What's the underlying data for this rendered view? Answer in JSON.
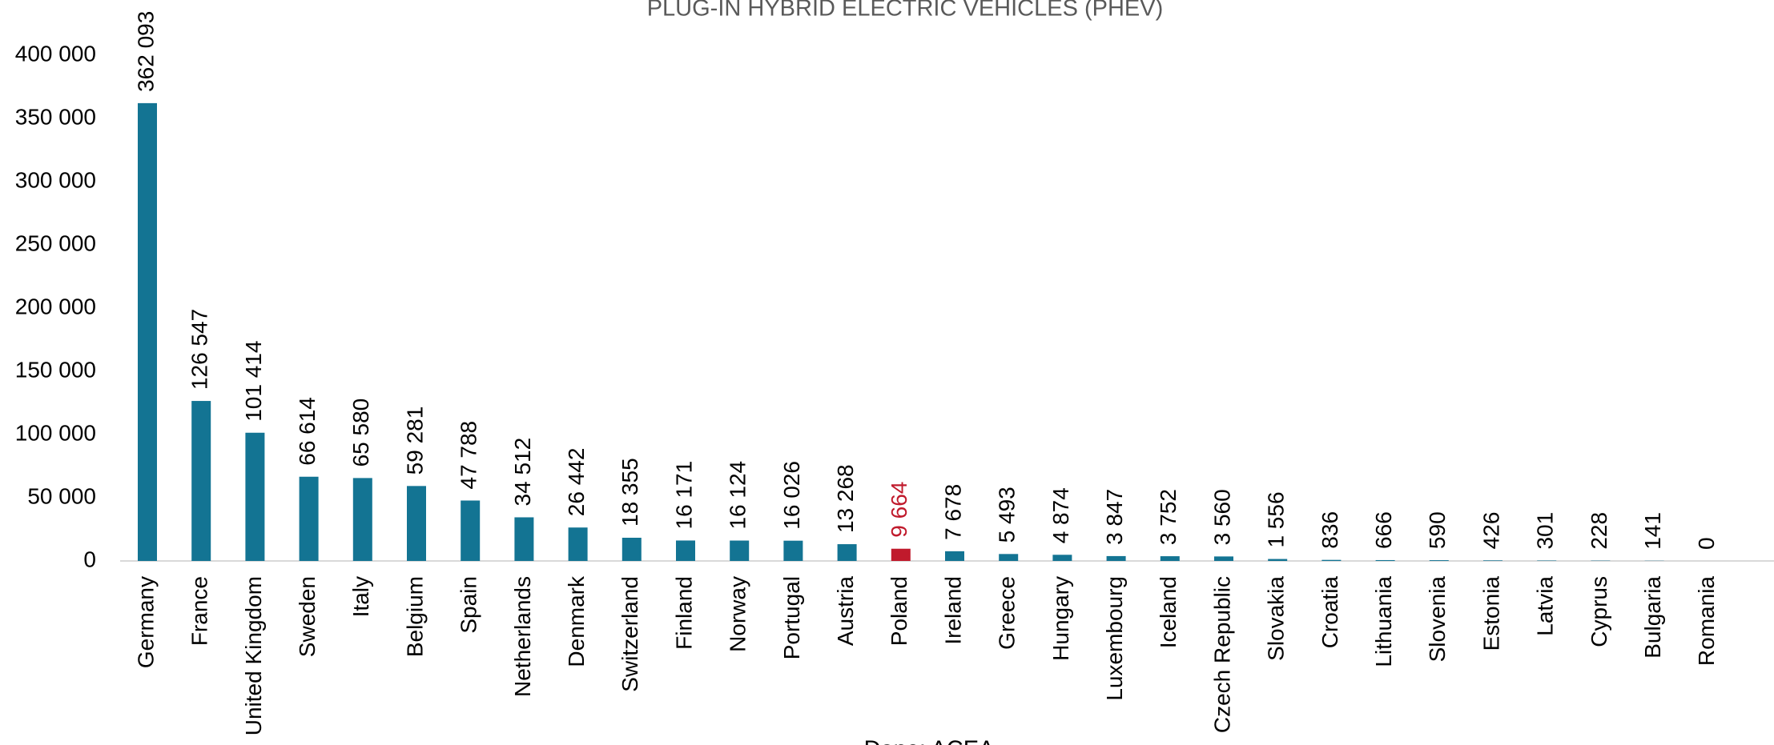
{
  "chart_data": {
    "type": "bar",
    "title": "PLUG-IN HYBRID ELECTRIC VEHICLES (PHEV)",
    "source": "Dane: ACEA",
    "categories": [
      "Germany",
      "France",
      "United Kingdom",
      "Sweden",
      "Italy",
      "Belgium",
      "Spain",
      "Netherlands",
      "Denmark",
      "Switzerland",
      "Finland",
      "Norway",
      "Portugal",
      "Austria",
      "Poland",
      "Ireland",
      "Greece",
      "Hungary",
      "Luxembourg",
      "Iceland",
      "Czech Republic",
      "Slovakia",
      "Croatia",
      "Lithuania",
      "Slovenia",
      "Estonia",
      "Latvia",
      "Cyprus",
      "Bulgaria",
      "Romania"
    ],
    "values": [
      362093,
      126547,
      101414,
      66614,
      65580,
      59281,
      47788,
      34512,
      26442,
      18355,
      16171,
      16124,
      16026,
      13268,
      9664,
      7678,
      5493,
      4874,
      3847,
      3752,
      3560,
      1556,
      836,
      666,
      590,
      426,
      301,
      228,
      141,
      0
    ],
    "value_labels": [
      "362 093",
      "126 547",
      "101 414",
      "66 614",
      "65 580",
      "59 281",
      "47 788",
      "34 512",
      "26 442",
      "18 355",
      "16 171",
      "16 124",
      "16 026",
      "13 268",
      "9 664",
      "7 678",
      "5 493",
      "4 874",
      "3 847",
      "3 752",
      "3 560",
      "1 556",
      "836",
      "666",
      "590",
      "426",
      "301",
      "228",
      "141",
      "0"
    ],
    "colors": [
      "#137493",
      "#137493",
      "#137493",
      "#137493",
      "#137493",
      "#137493",
      "#137493",
      "#137493",
      "#137493",
      "#137493",
      "#137493",
      "#137493",
      "#137493",
      "#137493",
      "#c01a2c",
      "#137493",
      "#137493",
      "#137493",
      "#137493",
      "#137493",
      "#137493",
      "#137493",
      "#137493",
      "#137493",
      "#137493",
      "#137493",
      "#137493",
      "#137493",
      "#137493",
      "#137493"
    ],
    "ylim": [
      0,
      400000
    ],
    "yticks": [
      0,
      {
        "value": 50000,
        "label": "50 000"
      },
      {
        "value": 100000,
        "label": "100 000"
      },
      {
        "value": 150000,
        "label": "150 000"
      },
      {
        "value": 200000,
        "label": "200 000"
      },
      {
        "value": 250000,
        "label": "250 000"
      },
      {
        "value": 300000,
        "label": "300 000"
      },
      {
        "value": 350000,
        "label": "350 000"
      },
      {
        "value": 400000,
        "label": "400 000"
      }
    ],
    "grid": false
  }
}
